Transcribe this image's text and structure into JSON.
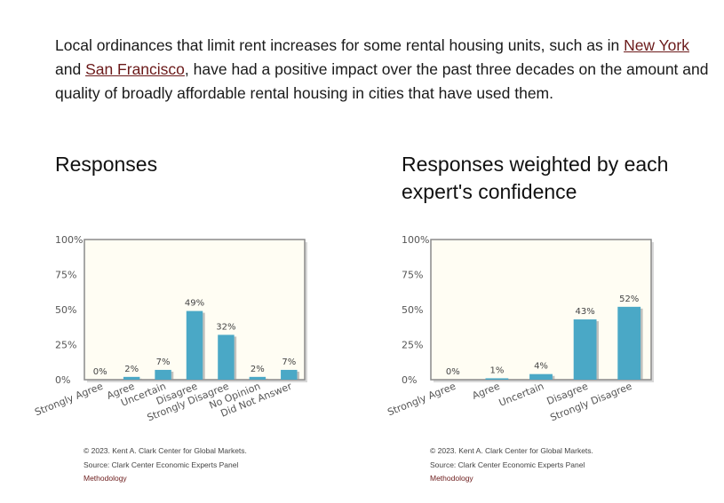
{
  "question": {
    "text_before": "Local ordinances that limit rent increases for some rental housing units, such as in ",
    "link1": "New York",
    "text_middle": " and ",
    "link2": "San Francisco",
    "text_after": ", have had a positive impact over the past three decades on the amount and quality of broadly affordable rental housing in cities that have used them."
  },
  "colors": {
    "bar": "#4aa8c6",
    "plot_bg": "#fffdf3",
    "frame": "#8a8a8a"
  },
  "chart_data": [
    {
      "type": "bar",
      "title": "Responses",
      "categories": [
        "Strongly Agree",
        "Agree",
        "Uncertain",
        "Disagree",
        "Strongly Disagree",
        "No Opinion",
        "Did Not Answer"
      ],
      "values": [
        0,
        2,
        7,
        49,
        32,
        2,
        7
      ],
      "labels": [
        "0%",
        "2%",
        "7%",
        "49%",
        "32%",
        "2%",
        "7%"
      ],
      "yticks": [
        "0%",
        "25%",
        "50%",
        "75%",
        "100%"
      ],
      "ylim": [
        0,
        100
      ],
      "grid": false
    },
    {
      "type": "bar",
      "title": "Responses weighted by each expert's confidence",
      "categories": [
        "Strongly Agree",
        "Agree",
        "Uncertain",
        "Disagree",
        "Strongly Disagree"
      ],
      "values": [
        0,
        1,
        4,
        43,
        52
      ],
      "labels": [
        "0%",
        "1%",
        "4%",
        "43%",
        "52%"
      ],
      "yticks": [
        "0%",
        "25%",
        "50%",
        "75%",
        "100%"
      ],
      "ylim": [
        0,
        100
      ],
      "grid": false
    }
  ],
  "footer": {
    "copyright": "© 2023. Kent A. Clark Center for Global Markets.",
    "source": "Source: Clark Center Economic Experts Panel",
    "methodology": "Methodology"
  }
}
